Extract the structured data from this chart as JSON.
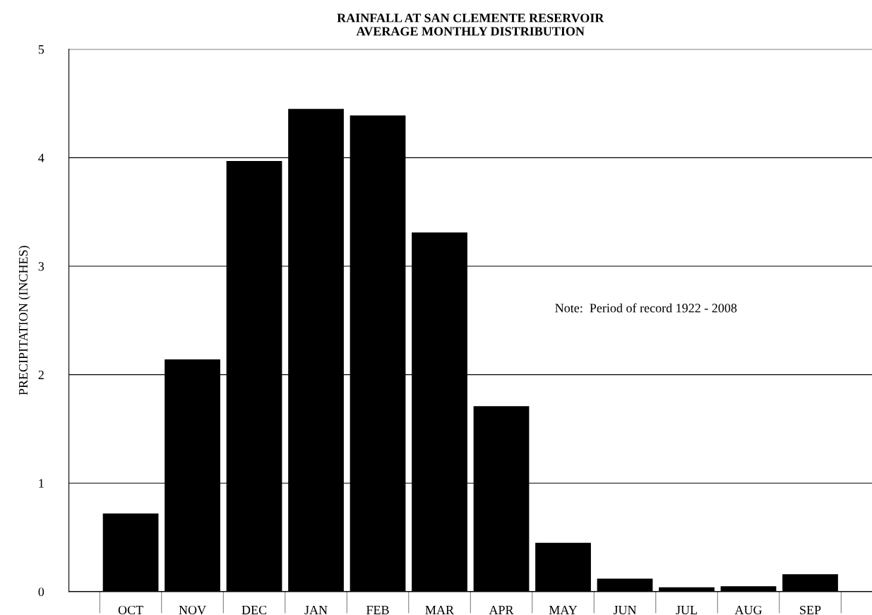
{
  "chart_data": {
    "type": "bar",
    "title": "RAINFALL AT SAN CLEMENTE RESERVOIR\nAVERAGE MONTHLY DISTRIBUTION",
    "ylabel": "PRECIPITATION (INCHES)",
    "categories": [
      "OCT",
      "NOV",
      "DEC",
      "JAN",
      "FEB",
      "MAR",
      "APR",
      "MAY",
      "JUN",
      "JUL",
      "AUG",
      "SEP"
    ],
    "values": [
      0.72,
      2.14,
      3.97,
      4.45,
      4.39,
      3.31,
      1.71,
      0.45,
      0.12,
      0.04,
      0.05,
      0.16
    ],
    "color": "#000000",
    "ylim": [
      0,
      5
    ],
    "yticks": [
      0,
      1,
      2,
      3,
      4,
      5
    ],
    "grid": "y",
    "annotations": [
      "Note:  Period of record 1922 - 2008"
    ]
  }
}
